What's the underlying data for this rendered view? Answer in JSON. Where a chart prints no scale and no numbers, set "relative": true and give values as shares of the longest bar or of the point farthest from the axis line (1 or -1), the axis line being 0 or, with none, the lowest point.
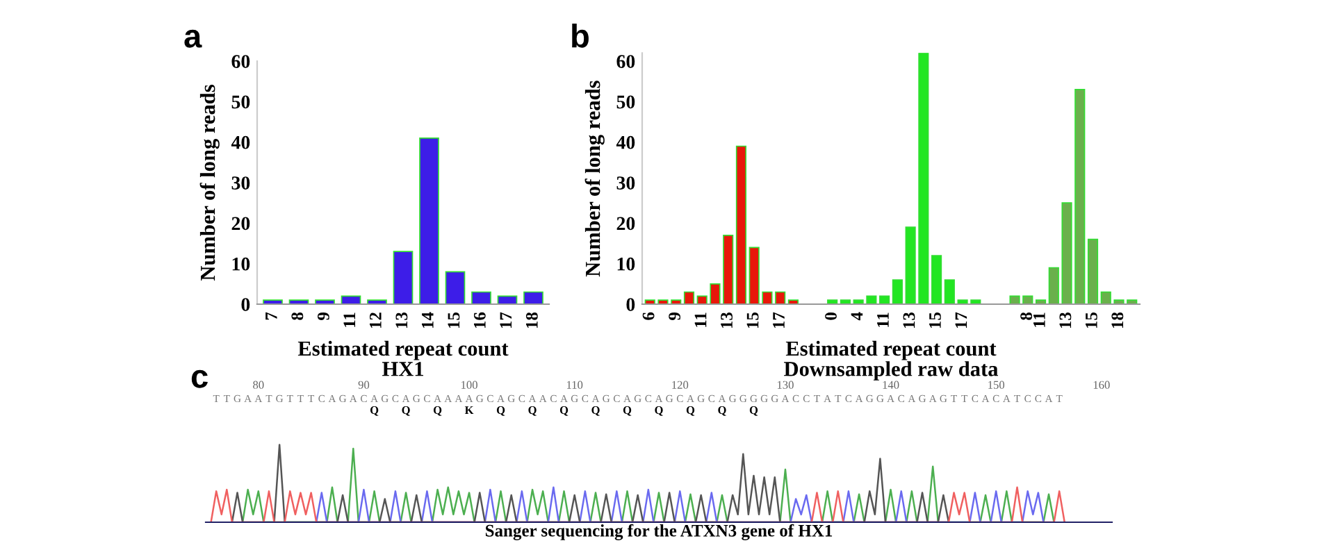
{
  "chart_data": [
    {
      "type": "bar",
      "annotations": [
        "a"
      ],
      "xlabel": "Estimated repeat count",
      "subtitle": "HX1",
      "ylabel": "Number of long reads",
      "categories": [
        "7",
        "8",
        "9",
        "11",
        "12",
        "13",
        "14",
        "15",
        "16",
        "17",
        "18"
      ],
      "series": [
        {
          "color": "#3d1de8",
          "values": [
            1,
            1,
            1,
            2,
            1,
            13,
            41,
            8,
            3,
            2,
            3
          ]
        }
      ],
      "ylim": [
        0,
        60
      ],
      "yticks": [
        0,
        10,
        20,
        30,
        40,
        50,
        60
      ]
    },
    {
      "type": "bar",
      "annotations": [
        "b"
      ],
      "ylabel": "Number of long reads",
      "xlabel": "Estimated repeat count",
      "subtitle": "Downsampled raw data",
      "categories": [
        "6",
        null,
        "9",
        null,
        "11",
        null,
        "13",
        null,
        "15",
        null,
        "17",
        null,
        null,
        null,
        "0",
        null,
        "4",
        null,
        "11",
        null,
        "13",
        null,
        "15",
        null,
        "17",
        null,
        null,
        null,
        null,
        "8",
        "11",
        null,
        "13",
        null,
        "15",
        null,
        "18",
        null
      ],
      "series": [
        {
          "color": "#e8170a",
          "values": [
            1,
            1,
            1,
            3,
            2,
            5,
            17,
            39,
            14,
            3,
            3,
            1,
            null,
            null,
            null,
            null,
            null,
            null,
            null,
            null,
            null,
            null,
            null,
            null,
            null,
            null,
            null,
            null,
            null,
            null,
            null,
            null,
            null,
            null,
            null,
            null,
            null,
            null
          ]
        },
        {
          "color": "#22e622",
          "values": [
            null,
            null,
            null,
            null,
            null,
            null,
            null,
            null,
            null,
            null,
            null,
            null,
            null,
            null,
            1,
            1,
            1,
            2,
            2,
            6,
            19,
            62,
            12,
            6,
            1,
            1,
            null,
            null,
            null,
            null,
            null,
            null,
            null,
            null,
            null,
            null,
            null,
            null
          ]
        },
        {
          "color": "#6ab04c",
          "values": [
            null,
            null,
            null,
            null,
            null,
            null,
            null,
            null,
            null,
            null,
            null,
            null,
            null,
            null,
            null,
            null,
            null,
            null,
            null,
            null,
            null,
            null,
            null,
            null,
            null,
            null,
            null,
            null,
            2,
            2,
            1,
            9,
            25,
            53,
            16,
            3,
            1,
            1
          ]
        }
      ],
      "ylim": [
        0,
        62
      ],
      "yticks": [
        0,
        10,
        20,
        30,
        40,
        50,
        60
      ]
    },
    {
      "type": "line",
      "relative": true,
      "tick_labels": "x",
      "annotations": [
        "c",
        "TTGAATGTTTCAGACAGCAGCAAAAGCAGCAACAGCAGCAGCAGCAGCAGGGGGACCTATCAGGACAGAGTTCACATCCAT",
        "Q Q Q K Q Q Q Q Q Q Q Q Q"
      ],
      "xlabel": "Sanger sequencing for the ATXN3 gene of HX1",
      "xlim": [
        75,
        161
      ],
      "xticks": [
        80,
        90,
        100,
        110,
        120,
        130,
        140,
        150,
        160
      ],
      "series": [
        {
          "color": "#4caf50",
          "x": [
            78.5,
            79,
            79.5,
            80,
            80.5,
            86.5,
            87,
            87.5,
            88.5,
            89,
            89.5,
            90.5,
            91,
            91.5,
            93.5,
            94,
            94.5,
            96.5,
            97,
            97.5,
            98,
            98.5,
            99,
            99.5,
            100,
            100.5,
            102.5,
            103,
            103.5,
            105.5,
            106,
            106.5,
            107,
            107.5,
            108.5,
            109,
            109.5,
            111.5,
            112,
            112.5,
            114.5,
            115,
            115.5,
            117.5,
            118,
            118.5,
            120.5,
            121,
            121.5,
            123.5,
            124,
            124.5,
            129.5,
            130,
            130.5,
            133.5,
            134,
            134.5,
            136.5,
            137,
            137.5,
            139.5,
            140,
            140.5,
            141.5,
            142,
            142.5,
            143.5,
            144,
            144.5,
            148.5,
            149,
            149.5,
            150.5,
            151,
            151.5,
            154.5,
            155,
            155.5
          ],
          "values": [
            0,
            0.42,
            0.1,
            0.4,
            0,
            0,
            0.45,
            0,
            0,
            0.95,
            0,
            0,
            0.4,
            0,
            0,
            0.38,
            0,
            0,
            0.42,
            0.1,
            0.45,
            0.1,
            0.4,
            0.1,
            0.38,
            0,
            0,
            0.4,
            0,
            0,
            0.42,
            0.1,
            0.4,
            0,
            0,
            0.4,
            0,
            0,
            0.38,
            0,
            0,
            0.4,
            0,
            0,
            0.38,
            0,
            0,
            0.36,
            0,
            0,
            0.35,
            0,
            0,
            0.68,
            0,
            0,
            0.4,
            0,
            0,
            0.36,
            0,
            0,
            0.42,
            0,
            0,
            0.4,
            0,
            0,
            0.72,
            0,
            0,
            0.35,
            0,
            0,
            0.4,
            0,
            0,
            0.36,
            0
          ]
        },
        {
          "color": "#6a6af0",
          "x": [
            85.5,
            86,
            86.5,
            89.5,
            90,
            90.5,
            92.5,
            93,
            93.5,
            95.5,
            96,
            96.5,
            101.5,
            102,
            102.5,
            104.5,
            105,
            105.5,
            107.5,
            108,
            108.5,
            110.5,
            111,
            111.5,
            113.5,
            114,
            114.5,
            116.5,
            117,
            117.5,
            119.5,
            120,
            120.5,
            122.5,
            123,
            123.5,
            130.5,
            131,
            131.5,
            132,
            132.5,
            135.5,
            136,
            136.5,
            140.5,
            141,
            141.5,
            147.5,
            148,
            148.5,
            149.5,
            150,
            150.5,
            152.5,
            153,
            153.5,
            154,
            154.5
          ],
          "values": [
            0,
            0.38,
            0,
            0,
            0.42,
            0,
            0,
            0.4,
            0,
            0,
            0.4,
            0,
            0,
            0.42,
            0,
            0,
            0.4,
            0,
            0,
            0.45,
            0,
            0,
            0.4,
            0,
            0,
            0.4,
            0,
            0,
            0.42,
            0,
            0,
            0.4,
            0,
            0,
            0.38,
            0,
            0,
            0.3,
            0.1,
            0.35,
            0,
            0,
            0.4,
            0,
            0,
            0.4,
            0,
            0,
            0.38,
            0,
            0,
            0.4,
            0,
            0,
            0.4,
            0.1,
            0.38,
            0
          ]
        },
        {
          "color": "#555555",
          "x": [
            77.5,
            78,
            78.5,
            81.5,
            82,
            82.5,
            87.5,
            88,
            88.5,
            91.5,
            92,
            92.5,
            94.5,
            95,
            95.5,
            100.5,
            101,
            101.5,
            103.5,
            104,
            104.5,
            109.5,
            110,
            110.5,
            112.5,
            113,
            113.5,
            115.5,
            116,
            116.5,
            118.5,
            119,
            119.5,
            121.5,
            122,
            122.5,
            124.5,
            125,
            125.5,
            126,
            126.5,
            127,
            127.5,
            128,
            128.5,
            129,
            129.5,
            137.5,
            138,
            138.5,
            139,
            139.5,
            142.5,
            143,
            143.5,
            144.5,
            145,
            145.5
          ],
          "values": [
            0,
            0.38,
            0,
            0,
            1,
            0,
            0,
            0.35,
            0,
            0,
            0.3,
            0,
            0,
            0.35,
            0,
            0,
            0.38,
            0,
            0,
            0.35,
            0,
            0,
            0.35,
            0,
            0,
            0.36,
            0,
            0,
            0.35,
            0,
            0,
            0.38,
            0,
            0,
            0.35,
            0,
            0,
            0.35,
            0.1,
            0.88,
            0.1,
            0.6,
            0.1,
            0.58,
            0.1,
            0.58,
            0,
            0,
            0.4,
            0.1,
            0.82,
            0,
            0,
            0.38,
            0,
            0,
            0.35,
            0
          ]
        },
        {
          "color": "#f06060",
          "x": [
            75.5,
            76,
            76.5,
            77,
            77.5,
            80.5,
            81,
            81.5,
            82.5,
            83,
            83.5,
            84,
            84.5,
            85,
            85.5,
            132.5,
            133,
            133.5,
            134.5,
            135,
            135.5,
            145.5,
            146,
            146.5,
            147,
            147.5,
            151.5,
            152,
            152.5,
            155.5,
            156,
            156.5
          ],
          "values": [
            0,
            0.4,
            0.1,
            0.42,
            0,
            0,
            0.4,
            0,
            0,
            0.4,
            0.1,
            0.38,
            0.1,
            0.38,
            0,
            0,
            0.38,
            0,
            0,
            0.4,
            0,
            0,
            0.38,
            0.1,
            0.38,
            0,
            0,
            0.45,
            0,
            0,
            0.4,
            0
          ]
        }
      ]
    }
  ]
}
